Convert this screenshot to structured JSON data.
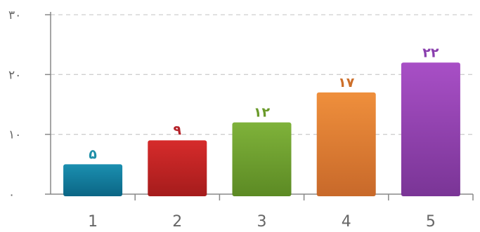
{
  "chart_data": {
    "type": "bar",
    "categories": [
      "1",
      "2",
      "3",
      "4",
      "5"
    ],
    "values": [
      5,
      9,
      12,
      17,
      22
    ],
    "data_labels": [
      "۵",
      "۹",
      "۱۲",
      "۱۷",
      "۲۲"
    ],
    "y_tick_labels": [
      "۰",
      "۱۰",
      "۲۰",
      "۳۰"
    ],
    "y_ticks": [
      0,
      10,
      20,
      30
    ],
    "ylim": [
      0,
      30
    ],
    "grid": "horizontal dashed",
    "title": "",
    "xlabel": "",
    "ylabel": "",
    "colors": {
      "bars": [
        [
          "#1b8fb0",
          "#0b6685"
        ],
        [
          "#d62b2b",
          "#a51c1c"
        ],
        [
          "#7fb23a",
          "#5c8a24"
        ],
        [
          "#ef8f3c",
          "#c8692a"
        ],
        [
          "#a84fc6",
          "#7a3596"
        ]
      ],
      "labels": [
        "#1f8fa8",
        "#b5232a",
        "#6a9a2a",
        "#cd6f2a",
        "#8a3fae"
      ],
      "axis": "#888888",
      "grid": "#cfcfcf"
    }
  }
}
